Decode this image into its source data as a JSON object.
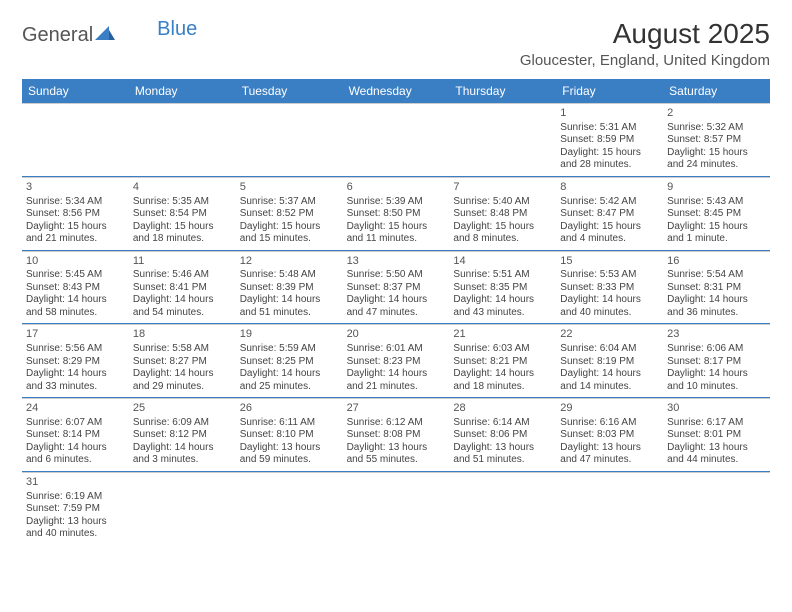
{
  "logo": {
    "part1": "General",
    "part2": "Blue"
  },
  "title": "August 2025",
  "subtitle": "Gloucester, England, United Kingdom",
  "colors": {
    "header_bg": "#3a7fc4",
    "header_text": "#ffffff",
    "row_border": "#3a7fc4",
    "cell_border": "#cccccc",
    "text": "#444444",
    "title_color": "#333333",
    "subtitle_color": "#555555",
    "background": "#ffffff"
  },
  "day_headers": [
    "Sunday",
    "Monday",
    "Tuesday",
    "Wednesday",
    "Thursday",
    "Friday",
    "Saturday"
  ],
  "weeks": [
    [
      null,
      null,
      null,
      null,
      null,
      {
        "n": "1",
        "sunrise": "5:31 AM",
        "sunset": "8:59 PM",
        "dl": "15 hours and 28 minutes."
      },
      {
        "n": "2",
        "sunrise": "5:32 AM",
        "sunset": "8:57 PM",
        "dl": "15 hours and 24 minutes."
      }
    ],
    [
      {
        "n": "3",
        "sunrise": "5:34 AM",
        "sunset": "8:56 PM",
        "dl": "15 hours and 21 minutes."
      },
      {
        "n": "4",
        "sunrise": "5:35 AM",
        "sunset": "8:54 PM",
        "dl": "15 hours and 18 minutes."
      },
      {
        "n": "5",
        "sunrise": "5:37 AM",
        "sunset": "8:52 PM",
        "dl": "15 hours and 15 minutes."
      },
      {
        "n": "6",
        "sunrise": "5:39 AM",
        "sunset": "8:50 PM",
        "dl": "15 hours and 11 minutes."
      },
      {
        "n": "7",
        "sunrise": "5:40 AM",
        "sunset": "8:48 PM",
        "dl": "15 hours and 8 minutes."
      },
      {
        "n": "8",
        "sunrise": "5:42 AM",
        "sunset": "8:47 PM",
        "dl": "15 hours and 4 minutes."
      },
      {
        "n": "9",
        "sunrise": "5:43 AM",
        "sunset": "8:45 PM",
        "dl": "15 hours and 1 minute."
      }
    ],
    [
      {
        "n": "10",
        "sunrise": "5:45 AM",
        "sunset": "8:43 PM",
        "dl": "14 hours and 58 minutes."
      },
      {
        "n": "11",
        "sunrise": "5:46 AM",
        "sunset": "8:41 PM",
        "dl": "14 hours and 54 minutes."
      },
      {
        "n": "12",
        "sunrise": "5:48 AM",
        "sunset": "8:39 PM",
        "dl": "14 hours and 51 minutes."
      },
      {
        "n": "13",
        "sunrise": "5:50 AM",
        "sunset": "8:37 PM",
        "dl": "14 hours and 47 minutes."
      },
      {
        "n": "14",
        "sunrise": "5:51 AM",
        "sunset": "8:35 PM",
        "dl": "14 hours and 43 minutes."
      },
      {
        "n": "15",
        "sunrise": "5:53 AM",
        "sunset": "8:33 PM",
        "dl": "14 hours and 40 minutes."
      },
      {
        "n": "16",
        "sunrise": "5:54 AM",
        "sunset": "8:31 PM",
        "dl": "14 hours and 36 minutes."
      }
    ],
    [
      {
        "n": "17",
        "sunrise": "5:56 AM",
        "sunset": "8:29 PM",
        "dl": "14 hours and 33 minutes."
      },
      {
        "n": "18",
        "sunrise": "5:58 AM",
        "sunset": "8:27 PM",
        "dl": "14 hours and 29 minutes."
      },
      {
        "n": "19",
        "sunrise": "5:59 AM",
        "sunset": "8:25 PM",
        "dl": "14 hours and 25 minutes."
      },
      {
        "n": "20",
        "sunrise": "6:01 AM",
        "sunset": "8:23 PM",
        "dl": "14 hours and 21 minutes."
      },
      {
        "n": "21",
        "sunrise": "6:03 AM",
        "sunset": "8:21 PM",
        "dl": "14 hours and 18 minutes."
      },
      {
        "n": "22",
        "sunrise": "6:04 AM",
        "sunset": "8:19 PM",
        "dl": "14 hours and 14 minutes."
      },
      {
        "n": "23",
        "sunrise": "6:06 AM",
        "sunset": "8:17 PM",
        "dl": "14 hours and 10 minutes."
      }
    ],
    [
      {
        "n": "24",
        "sunrise": "6:07 AM",
        "sunset": "8:14 PM",
        "dl": "14 hours and 6 minutes."
      },
      {
        "n": "25",
        "sunrise": "6:09 AM",
        "sunset": "8:12 PM",
        "dl": "14 hours and 3 minutes."
      },
      {
        "n": "26",
        "sunrise": "6:11 AM",
        "sunset": "8:10 PM",
        "dl": "13 hours and 59 minutes."
      },
      {
        "n": "27",
        "sunrise": "6:12 AM",
        "sunset": "8:08 PM",
        "dl": "13 hours and 55 minutes."
      },
      {
        "n": "28",
        "sunrise": "6:14 AM",
        "sunset": "8:06 PM",
        "dl": "13 hours and 51 minutes."
      },
      {
        "n": "29",
        "sunrise": "6:16 AM",
        "sunset": "8:03 PM",
        "dl": "13 hours and 47 minutes."
      },
      {
        "n": "30",
        "sunrise": "6:17 AM",
        "sunset": "8:01 PM",
        "dl": "13 hours and 44 minutes."
      }
    ],
    [
      {
        "n": "31",
        "sunrise": "6:19 AM",
        "sunset": "7:59 PM",
        "dl": "13 hours and 40 minutes."
      },
      null,
      null,
      null,
      null,
      null,
      null
    ]
  ]
}
